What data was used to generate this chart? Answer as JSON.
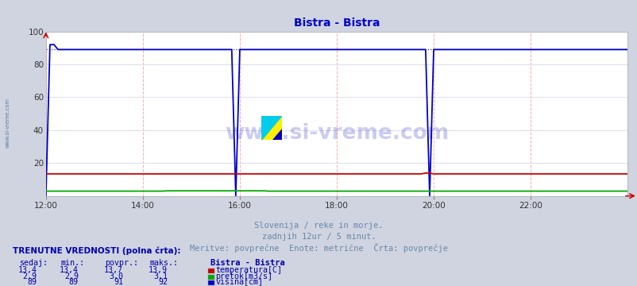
{
  "title": "Bistra - Bistra",
  "title_color": "#0000cc",
  "bg_color": "#d0d4e0",
  "plot_bg_color": "#ffffff",
  "grid_color_v": "#ffaaaa",
  "grid_color_h": "#ddddee",
  "xlabel_color": "#6688aa",
  "watermark": "www.si-vreme.com",
  "watermark_color": "#0000bb",
  "xticklabels": [
    "12:00",
    "14:00",
    "16:00",
    "18:00",
    "20:00",
    "22:00"
  ],
  "n_points": 145,
  "ylim": [
    0,
    100
  ],
  "yticks": [
    20,
    40,
    60,
    80,
    100
  ],
  "temp_color": "#cc0000",
  "flow_color": "#00aa00",
  "height_color": "#0000cc",
  "legend_title": "Bistra - Bistra",
  "table_header": "TRENUTNE VREDNOSTI (polna črta):",
  "col_headers": [
    "sedaj:",
    "min.:",
    "povpr.:",
    "maks.:"
  ],
  "row1": [
    "13,4",
    "13,4",
    "13,7",
    "13,9"
  ],
  "row2": [
    "2,9",
    "2,9",
    "3,0",
    "3,1"
  ],
  "row3": [
    "89",
    "89",
    "91",
    "92"
  ],
  "row1_label": "temperatura[C]",
  "row2_label": "pretok[m3/s]",
  "row3_label": "višina[cm]",
  "side_label": "www.si-vreme.com",
  "side_label_color": "#336699",
  "subtitle1": "Slovenija / reke in morje.",
  "subtitle2": "zadnjih 12ur / 5 minut.",
  "subtitle3": "Meritve: povprečne  Enote: metrične  Črta: povprečje"
}
